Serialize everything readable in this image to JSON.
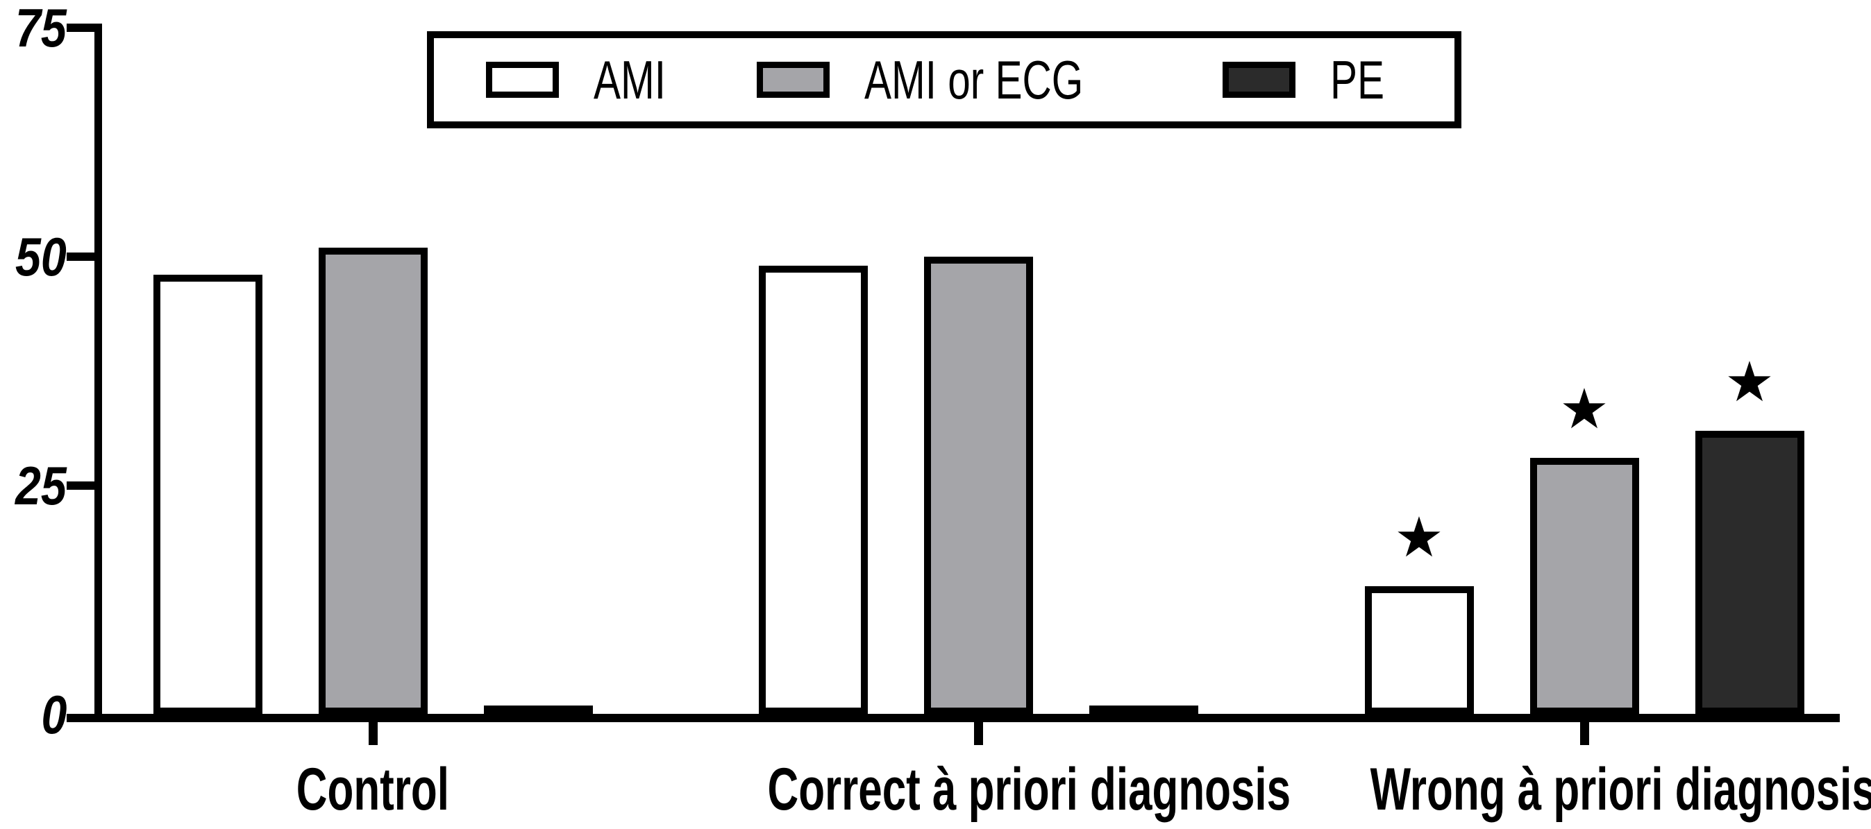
{
  "figure": {
    "background": "#ffffff",
    "axis_color": "#000000",
    "star_symbol": "★"
  },
  "chart_data": {
    "type": "bar",
    "title": "",
    "xlabel": "",
    "ylabel": "",
    "categories": [
      "Control",
      "Correct à priori diagnosis",
      "Wrong à priori diagnosis"
    ],
    "series": [
      {
        "name": "AMI",
        "fill": "#ffffff",
        "values": [
          48,
          49,
          14
        ],
        "starred": [
          false,
          false,
          true
        ]
      },
      {
        "name": "AMI or ECG",
        "fill": "#a5a5a9",
        "values": [
          51,
          50,
          28
        ],
        "starred": [
          false,
          false,
          true
        ]
      },
      {
        "name": "PE",
        "fill": "#2b2b2b",
        "values": [
          1,
          1,
          31
        ],
        "starred": [
          false,
          false,
          true
        ]
      }
    ],
    "yticks": [
      0,
      25,
      50,
      75
    ],
    "ylim": [
      0,
      75
    ],
    "grid": false,
    "legend_position": "top-center",
    "annotations": "stars mark all three bars of the Wrong à priori diagnosis group"
  }
}
